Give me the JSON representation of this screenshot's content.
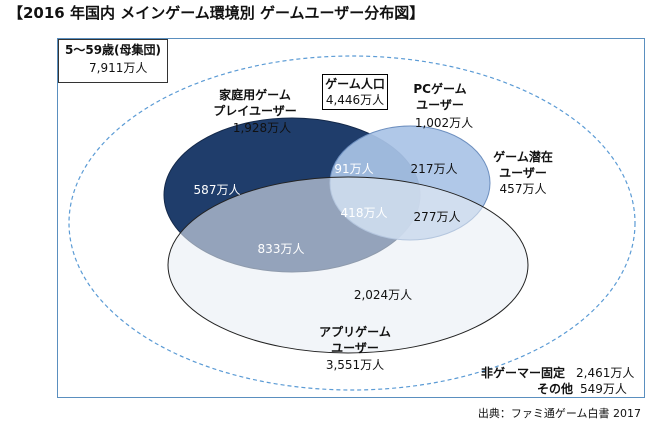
{
  "title": "【2016 年国内 メインゲーム環境別 ゲームユーザー分布図】",
  "source": "出典：ファミ通ゲーム白書 2017",
  "population": {
    "label": "5～59歳(母集団)",
    "value": "7,911万人"
  },
  "game_population": {
    "label": "ゲーム人口",
    "value": "4,446万人"
  },
  "groups": {
    "console": {
      "line1": "家庭用ゲーム",
      "line2": "プレイユーザー",
      "value": "1,928万人"
    },
    "pc": {
      "line1": "PCゲーム",
      "line2": "ユーザー",
      "value": "1,002万人"
    },
    "app": {
      "line1": "アプリゲーム",
      "line2": "ユーザー",
      "value": "3,551万人"
    },
    "latent": {
      "line1": "ゲーム潜在",
      "line2": "ユーザー",
      "value": "457万人"
    },
    "non_gamer": {
      "label": "非ゲーマー固定",
      "value": "2,461万人"
    },
    "other": {
      "label": "その他",
      "value": "549万人"
    }
  },
  "regions": {
    "console_only": "587万人",
    "console_pc": "91万人",
    "pc_only": "217万人",
    "all_three": "418万人",
    "pc_app": "277万人",
    "console_app": "833万人",
    "app_only": "2,024万人"
  },
  "colors": {
    "console": "#1f3d6b",
    "pc": "#a9c3e6",
    "app": "#e8edf5",
    "frame": "#5a8fbf"
  }
}
